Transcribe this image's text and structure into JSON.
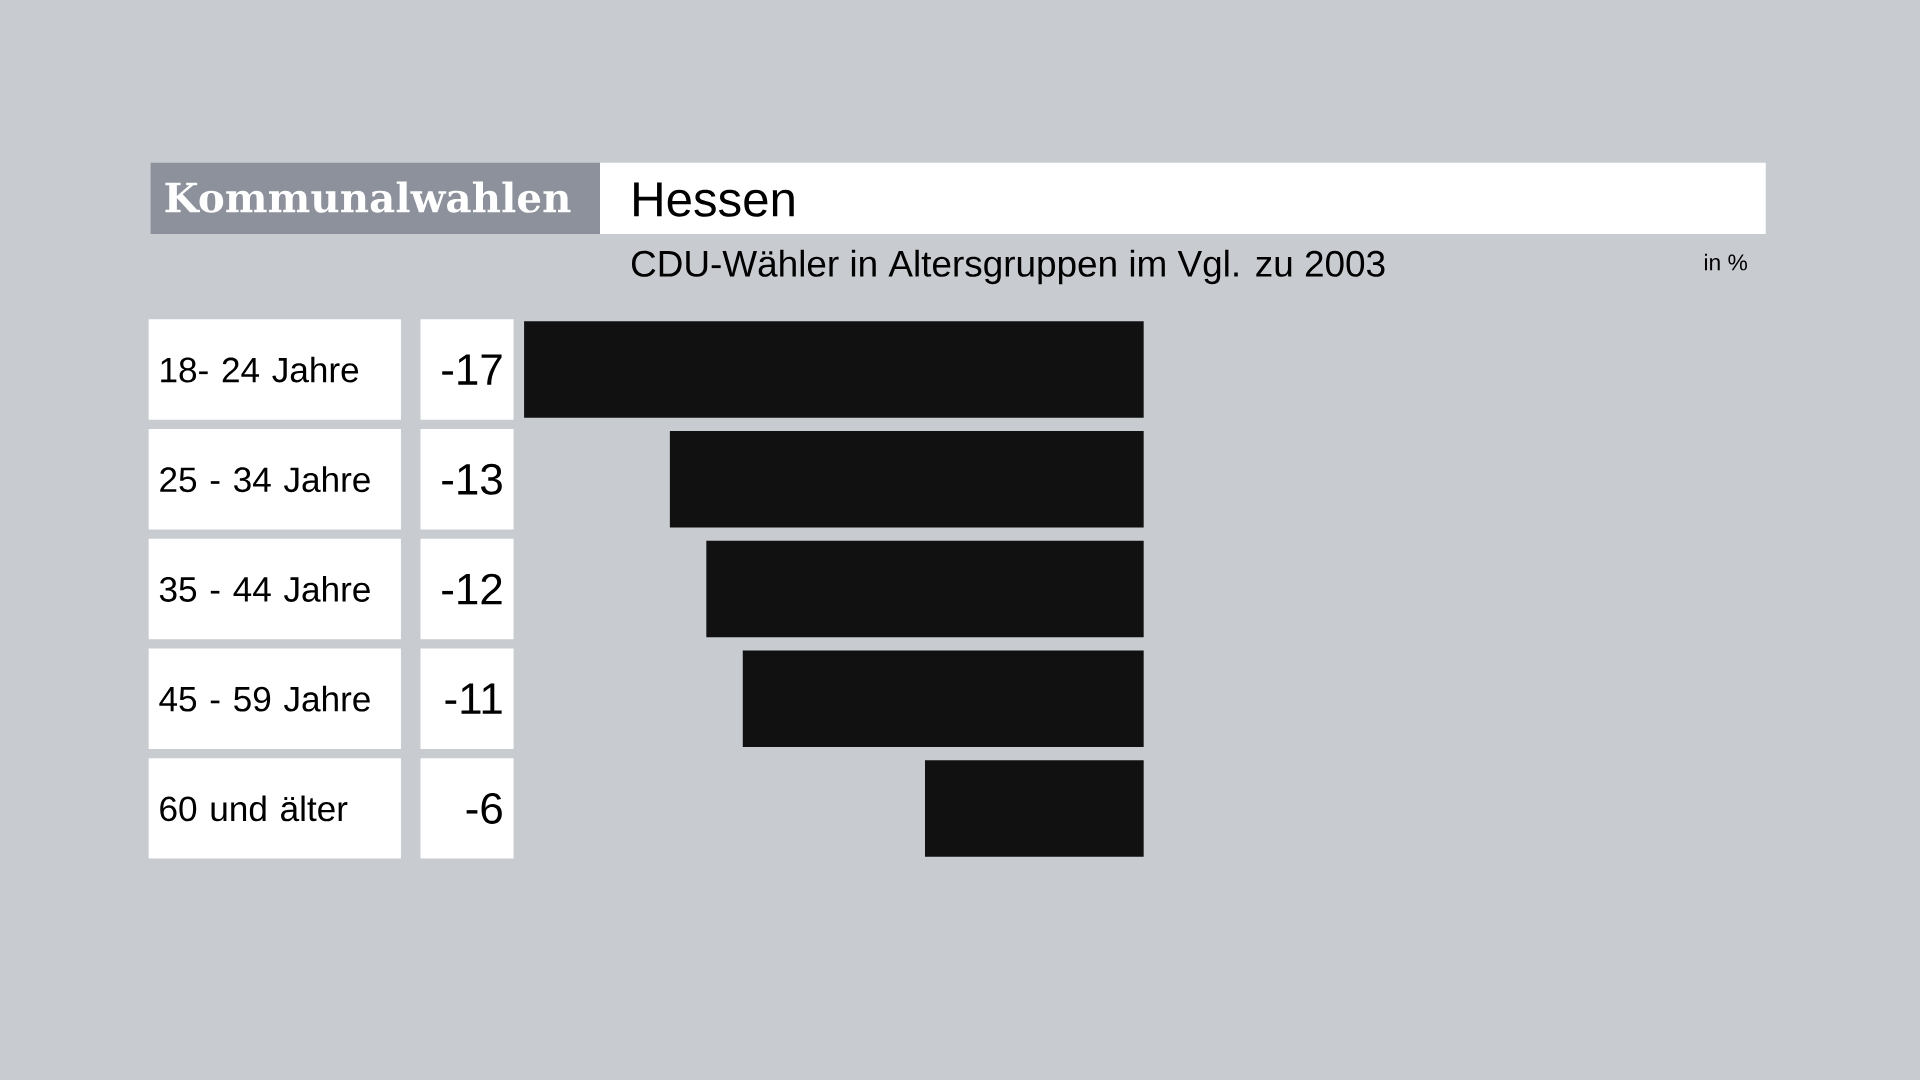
{
  "chart_data": {
    "type": "bar",
    "orientation": "horizontal",
    "title": "Hessen",
    "subtitle": "CDU-Wähler in Altersgruppen im Vgl. zu 2003",
    "annotations": [
      "Kommunalwahlen",
      "in %"
    ],
    "categories": [
      "18- 24 Jahre",
      "25 - 34 Jahre",
      "35 - 44 Jahre",
      "45 - 59 Jahre",
      "60 und älter"
    ],
    "values": [
      -17,
      -13,
      -12,
      -11,
      -6
    ],
    "color": "#111111",
    "data_labels": true,
    "tick_labels": "y"
  }
}
